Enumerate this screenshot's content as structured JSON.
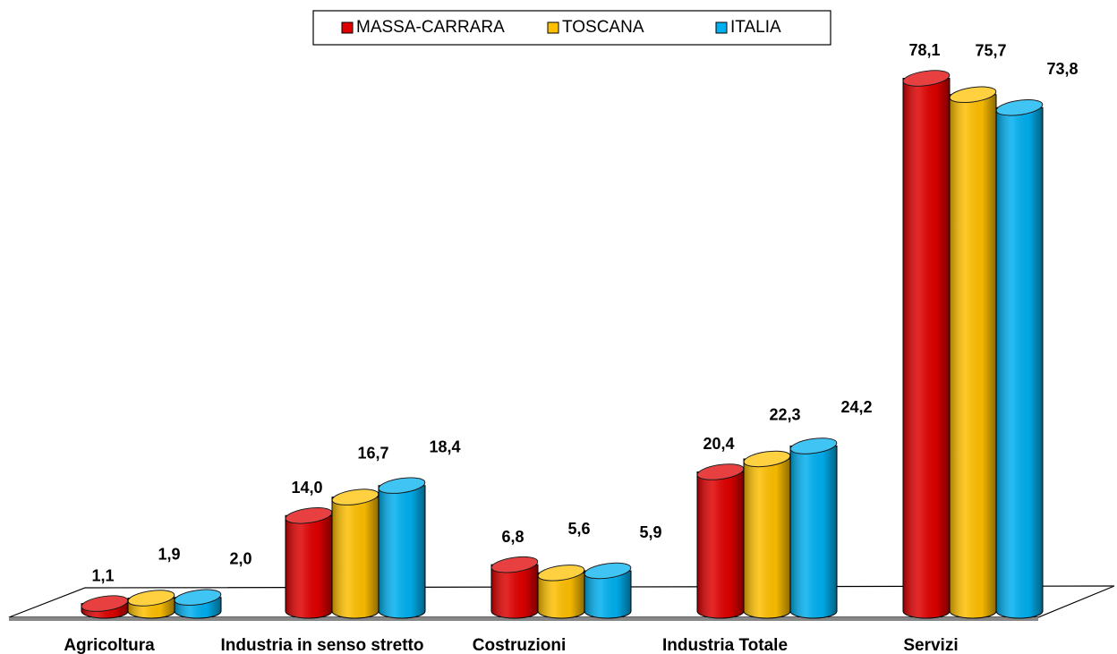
{
  "chart_data": {
    "type": "bar3d",
    "categories": [
      "Agricoltura",
      "Industria in senso stretto",
      "Costruzioni",
      "Industria Totale",
      "Servizi"
    ],
    "ylim": [
      0,
      80
    ],
    "legend": "top",
    "series": [
      {
        "name": "MASSA-CARRARA",
        "color": "#e00000",
        "values": [
          1.1,
          14.0,
          6.8,
          20.4,
          78.1
        ],
        "value_labels": [
          "1,1",
          "14,0",
          "6,8",
          "20,4",
          "78,1"
        ]
      },
      {
        "name": "TOSCANA",
        "color": "#ffc000",
        "values": [
          1.9,
          16.7,
          5.6,
          22.3,
          75.7
        ],
        "value_labels": [
          "1,9",
          "16,7",
          "5,6",
          "22,3",
          "75,7"
        ]
      },
      {
        "name": "ITALIA",
        "color": "#00b0f0",
        "values": [
          2.0,
          18.4,
          5.9,
          24.2,
          73.8
        ],
        "value_labels": [
          "2,0",
          "18,4",
          "5,9",
          "24,2",
          "73,8"
        ]
      }
    ]
  }
}
